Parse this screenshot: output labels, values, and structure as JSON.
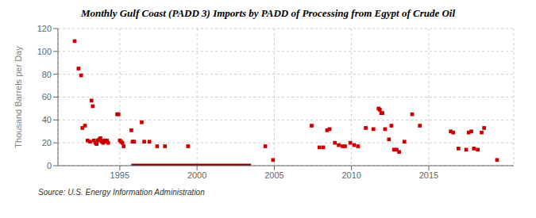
{
  "chart_data": {
    "type": "scatter",
    "title": "Monthly Gulf Coast (PADD 3) Imports by PADD of Processing from Egypt of Crude Oil",
    "ylabel": "Thousand Barrels per Day",
    "xlim": [
      1991.0,
      2020.5
    ],
    "xticks": [
      1995,
      2000,
      2005,
      2010,
      2015
    ],
    "ylim": [
      0,
      120
    ],
    "yticks": [
      0,
      20,
      40,
      60,
      80,
      100,
      120
    ],
    "grid": true,
    "annotations": [
      "Source: U.S. Energy Information Administration"
    ],
    "series": [
      {
        "type": "scatter",
        "marker": "square",
        "color": "#cc0000",
        "x": [
          1992.08,
          1992.33,
          1992.5,
          1992.58,
          1992.75,
          1992.92,
          1993.08,
          1993.17,
          1993.25,
          1993.33,
          1993.42,
          1993.5,
          1993.58,
          1993.67,
          1993.75,
          1993.83,
          1993.92,
          1994.0,
          1994.08,
          1994.17,
          1994.25,
          1994.83,
          1994.92,
          1995.0,
          1995.08,
          1995.17,
          1995.25,
          1995.75,
          1995.83,
          1995.92,
          1996.42,
          1996.58,
          1996.92,
          1997.42,
          1997.92,
          1999.42,
          2004.42,
          2004.92,
          2007.42,
          2007.92,
          2008.17,
          2008.42,
          2008.58,
          2008.92,
          2009.17,
          2009.42,
          2009.58,
          2009.92,
          2010.17,
          2010.42,
          2010.92,
          2011.42,
          2011.75,
          2011.83,
          2011.92,
          2012.0,
          2012.17,
          2012.42,
          2012.58,
          2012.75,
          2012.92,
          2013.08,
          2013.42,
          2013.92,
          2014.42,
          2016.42,
          2016.58,
          2016.92,
          2017.42,
          2017.58,
          2017.75,
          2017.92,
          2018.17,
          2018.42,
          2018.58,
          2019.42
        ],
        "values": [
          109,
          85,
          79,
          33,
          35,
          22,
          21,
          57,
          52,
          22,
          20,
          19,
          22,
          23,
          24,
          21,
          20,
          22,
          21,
          22,
          20,
          45,
          45,
          22,
          21,
          20,
          17,
          31,
          21,
          21,
          38,
          21,
          21,
          17,
          17,
          17,
          17,
          5,
          35,
          16,
          16,
          31,
          32,
          20,
          18,
          17,
          17,
          20,
          18,
          17,
          33,
          32,
          50,
          49,
          46,
          46,
          32,
          23,
          35,
          14,
          14,
          12,
          21,
          45,
          35,
          30,
          29,
          15,
          14,
          29,
          30,
          15,
          14,
          29,
          33,
          5
        ]
      },
      {
        "type": "line",
        "color": "#8b0000",
        "x": [
          1995.75,
          2003.5
        ],
        "values": [
          0,
          0
        ]
      }
    ]
  }
}
